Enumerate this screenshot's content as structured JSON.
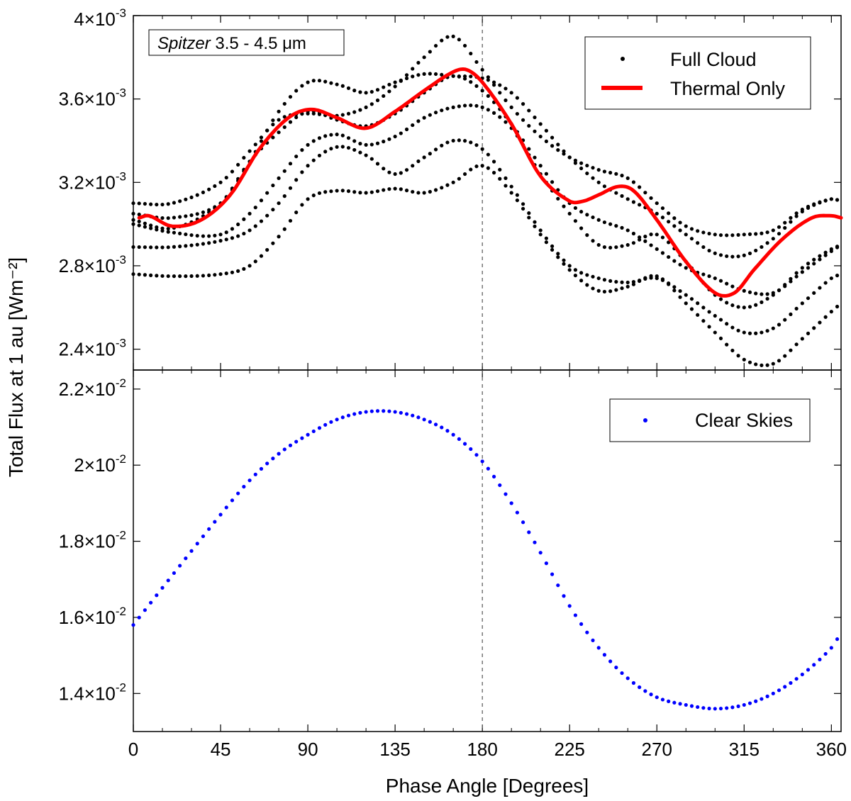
{
  "chart_data": [
    {
      "type": "scatter",
      "panel": "top",
      "annotation": {
        "italic": "Spitzer",
        "text": " 3.5 - 4.5 μm"
      },
      "xlabel": "Phase Angle [Degrees]",
      "ylabel": "Total Flux at 1 au [Wm⁻²]",
      "xlim": [
        0,
        365
      ],
      "ylim": [
        0.0023,
        0.004
      ],
      "x_ticks": [
        0,
        45,
        90,
        135,
        180,
        225,
        270,
        315,
        360
      ],
      "x_tick_labels": [
        "0",
        "45",
        "90",
        "135",
        "180",
        "225",
        "270",
        "315",
        "360"
      ],
      "y_ticks": [
        0.0024,
        0.0028,
        0.0032,
        0.0036,
        0.004
      ],
      "y_tick_labels": [
        {
          "mant": "2.4×10",
          "exp": "-3"
        },
        {
          "mant": "2.8×10",
          "exp": "-3"
        },
        {
          "mant": "3.2×10",
          "exp": "-3"
        },
        {
          "mant": "3.6×10",
          "exp": "-3"
        },
        {
          "mant": "4×10",
          "exp": "-3"
        }
      ],
      "vline_x": 180,
      "legend": [
        {
          "label": "Full Cloud",
          "marker": "dot",
          "color": "#000000"
        },
        {
          "label": "Thermal Only",
          "marker": "line",
          "color": "#ff0000"
        }
      ],
      "legend_loc": "top-right",
      "series": [
        {
          "name": "Full Cloud 1",
          "style": "dots",
          "color": "#000000",
          "x": [
            0,
            20,
            45,
            60,
            75,
            90,
            105,
            120,
            135,
            150,
            165,
            180,
            195,
            210,
            225,
            240,
            255,
            270,
            285,
            300,
            315,
            330,
            345,
            360,
            365
          ],
          "y": [
            0.0031,
            0.0031,
            0.0032,
            0.00335,
            0.0035,
            0.00353,
            0.00352,
            0.00356,
            0.00366,
            0.0038,
            0.0039,
            0.00374,
            0.00356,
            0.00342,
            0.00332,
            0.00326,
            0.00322,
            0.0031,
            0.00299,
            0.00295,
            0.00295,
            0.00297,
            0.00307,
            0.00312,
            0.00311
          ]
        },
        {
          "name": "Full Cloud 2",
          "style": "dots",
          "color": "#000000",
          "x": [
            0,
            20,
            45,
            60,
            75,
            90,
            105,
            120,
            135,
            150,
            165,
            180,
            195,
            210,
            225,
            240,
            255,
            270,
            285,
            300,
            315,
            330,
            345,
            360,
            365
          ],
          "y": [
            0.00305,
            0.00303,
            0.0031,
            0.0033,
            0.00354,
            0.00368,
            0.00367,
            0.00363,
            0.00368,
            0.00372,
            0.00371,
            0.0037,
            0.00363,
            0.00348,
            0.00332,
            0.0032,
            0.00312,
            0.00305,
            0.00295,
            0.00286,
            0.00285,
            0.00293,
            0.00306,
            0.00312,
            0.00311
          ]
        },
        {
          "name": "Full Cloud 3",
          "style": "dots",
          "color": "#000000",
          "x": [
            0,
            20,
            45,
            60,
            75,
            90,
            105,
            120,
            135,
            150,
            165,
            180,
            195,
            210,
            225,
            240,
            255,
            270,
            285,
            300,
            315,
            330,
            345,
            360,
            365
          ],
          "y": [
            0.00302,
            0.00298,
            0.0031,
            0.0033,
            0.00344,
            0.00354,
            0.0035,
            0.00347,
            0.00353,
            0.00363,
            0.00371,
            0.00364,
            0.00348,
            0.00328,
            0.0031,
            0.00302,
            0.00297,
            0.00288,
            0.00279,
            0.00274,
            0.00268,
            0.00267,
            0.00277,
            0.00287,
            0.0029
          ]
        },
        {
          "name": "Full Cloud 4",
          "style": "dots",
          "color": "#000000",
          "x": [
            0,
            20,
            45,
            60,
            75,
            90,
            105,
            120,
            135,
            150,
            165,
            180,
            195,
            210,
            225,
            240,
            255,
            270,
            285,
            300,
            315,
            330,
            345,
            360,
            365
          ],
          "y": [
            0.003,
            0.00296,
            0.00295,
            0.00305,
            0.00322,
            0.00338,
            0.00343,
            0.00338,
            0.00342,
            0.00351,
            0.00356,
            0.00356,
            0.00346,
            0.00324,
            0.00305,
            0.0029,
            0.0029,
            0.00295,
            0.00282,
            0.00266,
            0.0026,
            0.00266,
            0.00279,
            0.00288,
            0.0029
          ]
        },
        {
          "name": "Full Cloud 5",
          "style": "dots",
          "color": "#000000",
          "x": [
            0,
            20,
            45,
            60,
            75,
            90,
            105,
            120,
            135,
            150,
            165,
            180,
            195,
            210,
            225,
            240,
            255,
            270,
            285,
            300,
            315,
            330,
            345,
            360,
            365
          ],
          "y": [
            0.00289,
            0.00289,
            0.00292,
            0.00297,
            0.0031,
            0.00328,
            0.00337,
            0.00333,
            0.00324,
            0.00332,
            0.0034,
            0.00336,
            0.00318,
            0.00297,
            0.0028,
            0.00274,
            0.00272,
            0.00274,
            0.00266,
            0.00256,
            0.00248,
            0.0025,
            0.00262,
            0.00274,
            0.00276
          ]
        },
        {
          "name": "Full Cloud 6",
          "style": "dots",
          "color": "#000000",
          "x": [
            0,
            20,
            45,
            60,
            75,
            90,
            105,
            120,
            135,
            150,
            165,
            180,
            195,
            210,
            225,
            240,
            255,
            270,
            285,
            300,
            315,
            330,
            345,
            360,
            365
          ],
          "y": [
            0.00276,
            0.00275,
            0.00276,
            0.0028,
            0.00294,
            0.00312,
            0.00316,
            0.00315,
            0.00317,
            0.00315,
            0.0032,
            0.00328,
            0.00315,
            0.00295,
            0.00278,
            0.00268,
            0.0027,
            0.00275,
            0.00262,
            0.00248,
            0.00235,
            0.00233,
            0.00245,
            0.00258,
            0.00262
          ]
        },
        {
          "name": "Thermal Only",
          "style": "line",
          "color": "#ff0000",
          "x": [
            3,
            8,
            20,
            35,
            50,
            65,
            80,
            92,
            105,
            120,
            135,
            150,
            165,
            172,
            180,
            195,
            210,
            225,
            232,
            240,
            250,
            258,
            270,
            285,
            300,
            310,
            320,
            335,
            350,
            360,
            365
          ],
          "y": [
            0.00303,
            0.00304,
            0.00299,
            0.00302,
            0.00314,
            0.00336,
            0.00351,
            0.00355,
            0.00351,
            0.00346,
            0.00354,
            0.00364,
            0.00373,
            0.00374,
            0.00368,
            0.00348,
            0.00323,
            0.00311,
            0.00311,
            0.00314,
            0.00318,
            0.00316,
            0.00302,
            0.00282,
            0.00267,
            0.00267,
            0.00278,
            0.00293,
            0.00303,
            0.00304,
            0.00303
          ]
        }
      ]
    },
    {
      "type": "scatter",
      "panel": "bottom",
      "xlim": [
        0,
        365
      ],
      "ylim": [
        0.013,
        0.0225
      ],
      "y_ticks": [
        0.014,
        0.016,
        0.018,
        0.02,
        0.022
      ],
      "y_tick_labels": [
        {
          "mant": "1.4×10",
          "exp": "-2"
        },
        {
          "mant": "1.6×10",
          "exp": "-2"
        },
        {
          "mant": "1.8×10",
          "exp": "-2"
        },
        {
          "mant": "2×10",
          "exp": "-2"
        },
        {
          "mant": "2.2×10",
          "exp": "-2"
        }
      ],
      "vline_x": 180,
      "legend": [
        {
          "label": "Clear Skies",
          "marker": "dot",
          "color": "#0000ff"
        }
      ],
      "legend_loc": "top-right",
      "series": [
        {
          "name": "Clear Skies",
          "style": "dots",
          "color": "#0000ff",
          "x": [
            0,
            20,
            45,
            60,
            75,
            90,
            105,
            120,
            135,
            150,
            165,
            180,
            195,
            210,
            225,
            240,
            255,
            270,
            285,
            300,
            315,
            330,
            345,
            360,
            365
          ],
          "y": [
            0.0158,
            0.0171,
            0.0187,
            0.0196,
            0.0203,
            0.0208,
            0.0212,
            0.0214,
            0.0214,
            0.0212,
            0.0208,
            0.0201,
            0.019,
            0.0177,
            0.0163,
            0.0152,
            0.0144,
            0.0139,
            0.0137,
            0.0136,
            0.0137,
            0.014,
            0.0145,
            0.0152,
            0.0156
          ]
        }
      ]
    }
  ]
}
